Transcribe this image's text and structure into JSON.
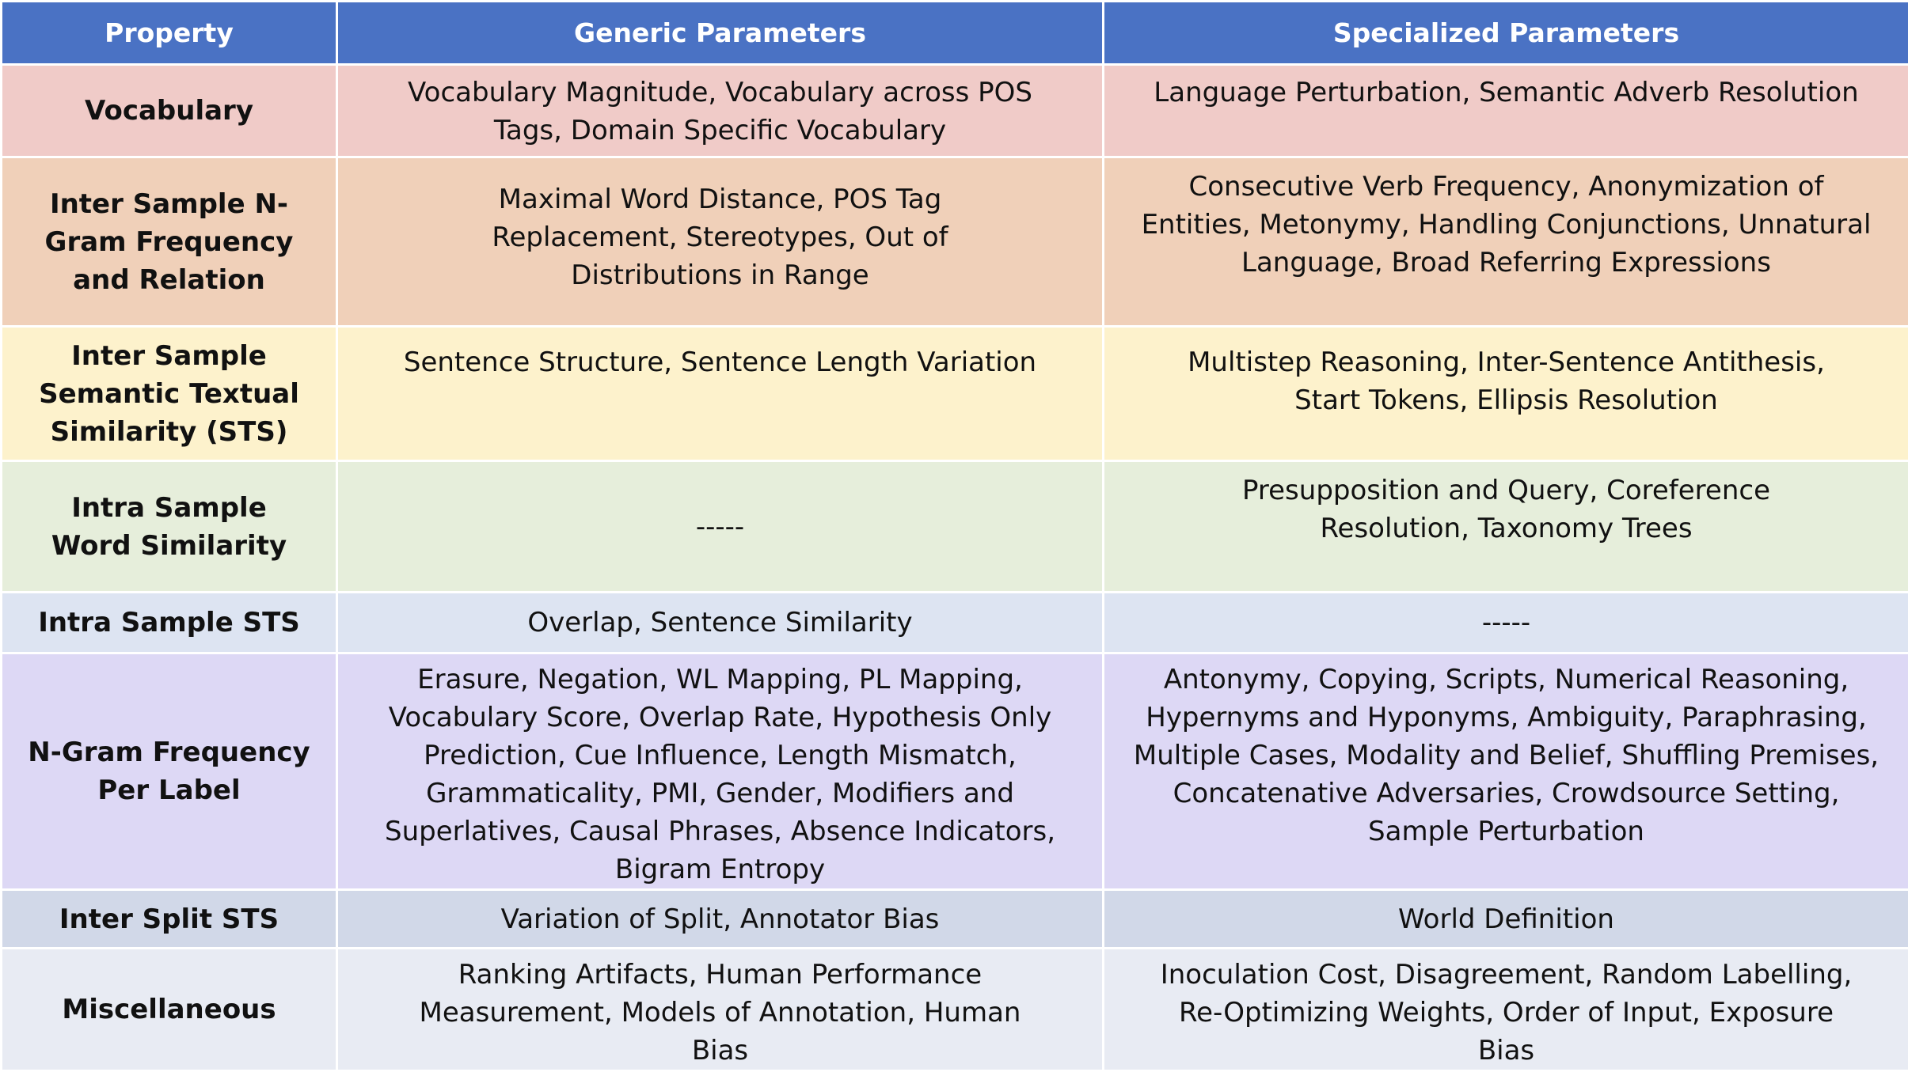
{
  "table": {
    "headers": [
      "Property",
      "Generic Parameters",
      "Specialized Parameters"
    ],
    "rows": [
      {
        "property": "Vocabulary",
        "generic": "Vocabulary Magnitude, Vocabulary across POS Tags, Domain Specific Vocabulary",
        "specialized": "Language Perturbation, Semantic Adverb Resolution",
        "color": "#f0cbc8"
      },
      {
        "property": "Inter Sample N-Gram Frequency and Relation",
        "generic": "Maximal Word Distance, POS Tag Replacement, Stereotypes, Out of Distributions in Range",
        "specialized": "Consecutive Verb Frequency, Anonymization of Entities, Metonymy, Handling Conjunctions, Unnatural Language, Broad Referring Expressions",
        "color": "#f0d0b9"
      },
      {
        "property": "Inter Sample Semantic Textual Similarity (STS)",
        "generic": "Sentence Structure, Sentence Length Variation",
        "specialized": "Multistep Reasoning, Inter-Sentence Antithesis, Start Tokens, Ellipsis Resolution",
        "color": "#fdf2cc"
      },
      {
        "property": "Intra Sample Word Similarity",
        "generic": "-----",
        "specialized": "Presupposition and Query, Coreference Resolution, Taxonomy Trees",
        "color": "#e6eedb"
      },
      {
        "property": "Intra Sample STS",
        "generic": "Overlap, Sentence Similarity",
        "specialized": "-----",
        "color": "#dde4f2"
      },
      {
        "property": "N-Gram Frequency Per Label",
        "generic": "Erasure, Negation, WL Mapping, PL Mapping, Vocabulary Score, Overlap Rate, Hypothesis Only Prediction, Cue Influence, Length Mismatch, Grammaticality, PMI, Gender, Modifiers and Superlatives, Causal Phrases, Absence Indicators, Bigram Entropy",
        "specialized": "Antonymy, Copying, Scripts, Numerical Reasoning, Hypernyms and Hyponyms, Ambiguity, Paraphrasing, Multiple Cases, Modality and Belief, Shuffling Premises, Concatenative Adversaries, Crowdsource Setting, Sample Perturbation",
        "color": "#ddd8f5"
      },
      {
        "property": "Inter Split STS",
        "generic": "Variation of Split, Annotator Bias",
        "specialized": "World Definition",
        "color": "#d1d8e8"
      },
      {
        "property": "Miscellaneous",
        "generic": "Ranking Artifacts, Human Performance Measurement, Models of Annotation, Human Bias",
        "specialized": "Inoculation Cost, Disagreement, Random Labelling, Re-Optimizing Weights, Order of Input, Exposure Bias",
        "color": "#e8ebf3"
      }
    ]
  }
}
